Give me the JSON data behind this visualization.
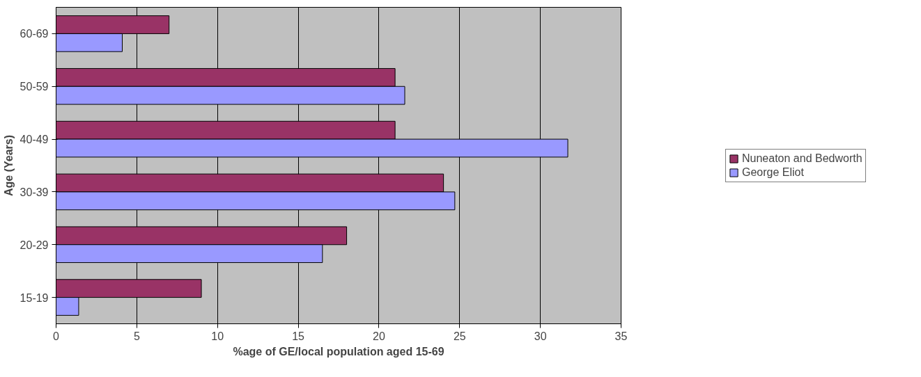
{
  "chart_data": {
    "type": "bar",
    "orientation": "horizontal",
    "xlabel": "%age of GE/local population aged 15-69",
    "ylabel": "Age (Years)",
    "categories": [
      "60-69",
      "50-59",
      "40-49",
      "30-39",
      "20-29",
      "15-19"
    ],
    "series": [
      {
        "name": "Nuneaton and Bedworth",
        "color": "#993366",
        "values": [
          7,
          21,
          21,
          24,
          18,
          9
        ]
      },
      {
        "name": "George Eliot",
        "color": "#9999ff",
        "values": [
          4.1,
          21.6,
          31.7,
          24.7,
          16.5,
          1.4
        ]
      }
    ],
    "xlim": [
      0,
      35
    ],
    "xticks": [
      0,
      5,
      10,
      15,
      20,
      25,
      30,
      35
    ],
    "grid": "x",
    "legend": "right"
  }
}
